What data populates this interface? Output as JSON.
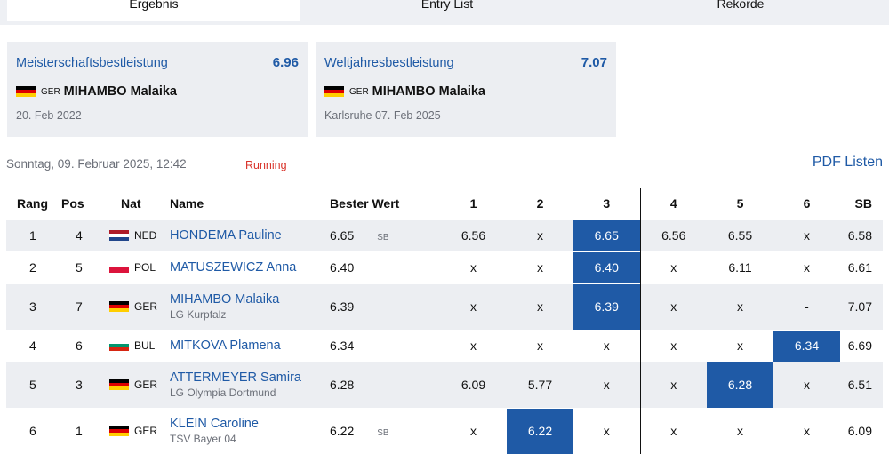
{
  "tabs": [
    {
      "label": "Ergebnis",
      "active": true
    },
    {
      "label": "Entry List",
      "active": false
    },
    {
      "label": "Rekorde",
      "active": false
    }
  ],
  "records": [
    {
      "title": "Meisterschaftsbestleistung",
      "value": "6.96",
      "nat": "GER",
      "holder": "MIHAMBO Malaika",
      "sub": "20. Feb 2022"
    },
    {
      "title": "Weltjahresbestleistung",
      "value": "7.07",
      "nat": "GER",
      "holder": "MIHAMBO Malaika",
      "sub": "Karlsruhe 07. Feb 2025"
    }
  ],
  "status": {
    "datetime": "Sonntag, 09. Februar 2025, 12:42",
    "state": "Running"
  },
  "pdf_link": "PDF Listen",
  "table": {
    "headers": [
      "Rang",
      "Pos",
      "Nat",
      "Name",
      "Bester Wert",
      "1",
      "2",
      "3",
      "4",
      "5",
      "6",
      "SB"
    ],
    "rows": [
      {
        "rang": "1",
        "pos": "4",
        "nat": "NED",
        "name": "HONDEMA Pauline",
        "club": "",
        "best": "6.65",
        "tag": "SB",
        "attempts": [
          "6.56",
          "x",
          "6.65",
          "6.56",
          "6.55",
          "x"
        ],
        "hl": 2,
        "sb": "6.58"
      },
      {
        "rang": "2",
        "pos": "5",
        "nat": "POL",
        "name": "MATUSZEWICZ Anna",
        "club": "",
        "best": "6.40",
        "tag": "",
        "attempts": [
          "x",
          "x",
          "6.40",
          "x",
          "6.11",
          "x"
        ],
        "hl": 2,
        "sb": "6.61"
      },
      {
        "rang": "3",
        "pos": "7",
        "nat": "GER",
        "name": "MIHAMBO Malaika",
        "club": "LG Kurpfalz",
        "best": "6.39",
        "tag": "",
        "attempts": [
          "x",
          "x",
          "6.39",
          "x",
          "x",
          "-"
        ],
        "hl": 2,
        "sb": "7.07"
      },
      {
        "rang": "4",
        "pos": "6",
        "nat": "BUL",
        "name": "MITKOVA Plamena",
        "club": "",
        "best": "6.34",
        "tag": "",
        "attempts": [
          "x",
          "x",
          "x",
          "x",
          "x",
          "6.34"
        ],
        "hl": 5,
        "sb": "6.69"
      },
      {
        "rang": "5",
        "pos": "3",
        "nat": "GER",
        "name": "ATTERMEYER Samira",
        "club": "LG Olympia Dortmund",
        "best": "6.28",
        "tag": "",
        "attempts": [
          "6.09",
          "5.77",
          "x",
          "x",
          "6.28",
          "x"
        ],
        "hl": 4,
        "sb": "6.51"
      },
      {
        "rang": "6",
        "pos": "1",
        "nat": "GER",
        "name": "KLEIN Caroline",
        "club": "TSV Bayer 04",
        "best": "6.22",
        "tag": "SB",
        "attempts": [
          "x",
          "6.22",
          "x",
          "x",
          "x",
          "x"
        ],
        "hl": 1,
        "sb": "6.09"
      }
    ]
  },
  "flags": {
    "GER": [
      "#000000",
      "#dd0000",
      "#ffce00"
    ],
    "NED": [
      "#ae1c28",
      "#ffffff",
      "#21468b"
    ],
    "POL": [
      "#ffffff",
      "#dc143c"
    ],
    "BUL": [
      "#ffffff",
      "#00966e",
      "#d62612"
    ]
  },
  "colors": {
    "accent": "#1f5aa6",
    "running": "#d9342b",
    "row_stripe": "#eceef2"
  }
}
